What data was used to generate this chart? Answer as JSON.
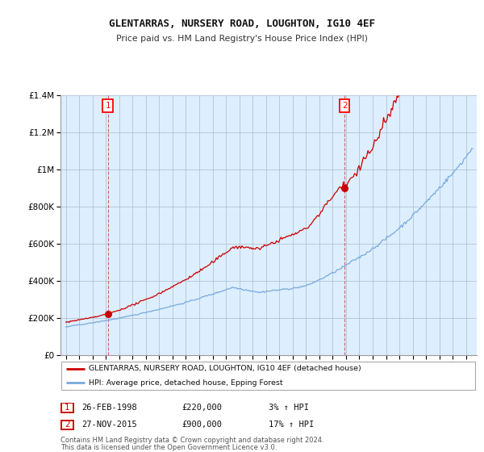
{
  "title": "GLENTARRAS, NURSERY ROAD, LOUGHTON, IG10 4EF",
  "subtitle": "Price paid vs. HM Land Registry's House Price Index (HPI)",
  "legend_property": "GLENTARRAS, NURSERY ROAD, LOUGHTON, IG10 4EF (detached house)",
  "legend_hpi": "HPI: Average price, detached house, Epping Forest",
  "sale1_label": "1",
  "sale1_date": "26-FEB-1998",
  "sale1_price": "£220,000",
  "sale1_hpi": "3% ↑ HPI",
  "sale2_label": "2",
  "sale2_date": "27-NOV-2015",
  "sale2_price": "£900,000",
  "sale2_hpi": "17% ↑ HPI",
  "footnote1": "Contains HM Land Registry data © Crown copyright and database right 2024.",
  "footnote2": "This data is licensed under the Open Government Licence v3.0.",
  "property_color": "#cc0000",
  "hpi_color": "#77aadd",
  "sale1_x": 1998.15,
  "sale1_y": 220000,
  "sale2_x": 2015.9,
  "sale2_y": 900000,
  "ylim": [
    0,
    1400000
  ],
  "xlim": [
    1994.6,
    2025.8
  ],
  "chart_bg": "#ddeeff",
  "background_color": "#ffffff",
  "grid_color": "#aabbcc"
}
